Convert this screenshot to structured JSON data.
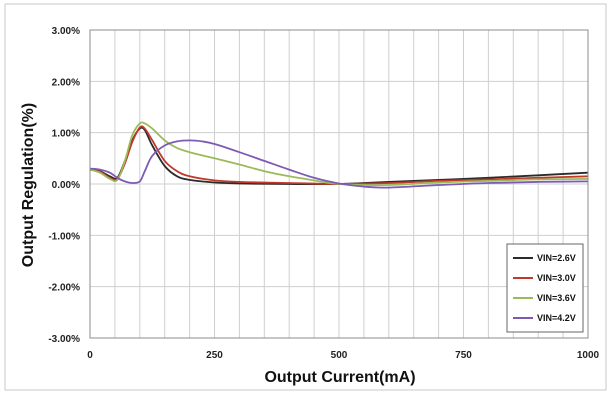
{
  "chart_data": {
    "type": "line",
    "title": "",
    "xlabel": "Output Current(mA)",
    "ylabel": "Output Regulation(%)",
    "xlim": [
      0,
      1000
    ],
    "ylim": [
      -3,
      3
    ],
    "x_ticks": [
      0,
      250,
      500,
      750,
      1000
    ],
    "x_tick_labels": [
      "0",
      "250",
      "500",
      "750",
      "1000"
    ],
    "y_ticks": [
      3,
      2,
      1,
      0,
      -1,
      -2,
      -3
    ],
    "y_tick_labels": [
      "3.00%",
      "2.00%",
      "1.00%",
      "0.00%",
      "-1.00%",
      "-2.00%",
      "-3.00%"
    ],
    "grid": true,
    "legend_position": "bottom-right",
    "series": [
      {
        "name": "VIN=2.6V",
        "color": "#2b2b2b",
        "x": [
          0,
          20,
          40,
          55,
          70,
          85,
          100,
          110,
          125,
          150,
          175,
          200,
          250,
          300,
          400,
          500,
          600,
          700,
          800,
          900,
          1000
        ],
        "y": [
          0.28,
          0.25,
          0.15,
          0.12,
          0.45,
          0.85,
          1.08,
          1.05,
          0.75,
          0.35,
          0.15,
          0.08,
          0.03,
          0.01,
          0.0,
          0.0,
          0.04,
          0.08,
          0.12,
          0.17,
          0.22
        ]
      },
      {
        "name": "VIN=3.0V",
        "color": "#c0392b",
        "x": [
          0,
          20,
          40,
          55,
          70,
          85,
          100,
          110,
          125,
          150,
          175,
          200,
          250,
          300,
          400,
          500,
          600,
          700,
          800,
          900,
          1000
        ],
        "y": [
          0.28,
          0.24,
          0.12,
          0.1,
          0.4,
          0.82,
          1.1,
          1.08,
          0.85,
          0.45,
          0.25,
          0.15,
          0.07,
          0.04,
          0.02,
          0.0,
          0.02,
          0.06,
          0.09,
          0.12,
          0.15
        ]
      },
      {
        "name": "VIN=3.6V",
        "color": "#9bbb59",
        "x": [
          0,
          20,
          40,
          55,
          70,
          85,
          100,
          110,
          125,
          150,
          175,
          200,
          250,
          300,
          350,
          400,
          450,
          500,
          600,
          700,
          800,
          900,
          1000
        ],
        "y": [
          0.28,
          0.22,
          0.1,
          0.08,
          0.45,
          0.95,
          1.18,
          1.18,
          1.08,
          0.85,
          0.7,
          0.62,
          0.5,
          0.38,
          0.25,
          0.15,
          0.07,
          0.0,
          -0.02,
          0.03,
          0.06,
          0.09,
          0.1
        ]
      },
      {
        "name": "VIN=4.2V",
        "color": "#7d5bb5",
        "x": [
          0,
          20,
          40,
          55,
          70,
          85,
          100,
          110,
          125,
          150,
          175,
          200,
          225,
          250,
          300,
          350,
          400,
          450,
          500,
          550,
          600,
          700,
          800,
          900,
          1000
        ],
        "y": [
          0.3,
          0.28,
          0.22,
          0.12,
          0.05,
          0.02,
          0.05,
          0.25,
          0.55,
          0.75,
          0.83,
          0.85,
          0.83,
          0.78,
          0.62,
          0.45,
          0.28,
          0.12,
          0.01,
          -0.05,
          -0.07,
          -0.02,
          0.02,
          0.04,
          0.05
        ]
      }
    ]
  }
}
